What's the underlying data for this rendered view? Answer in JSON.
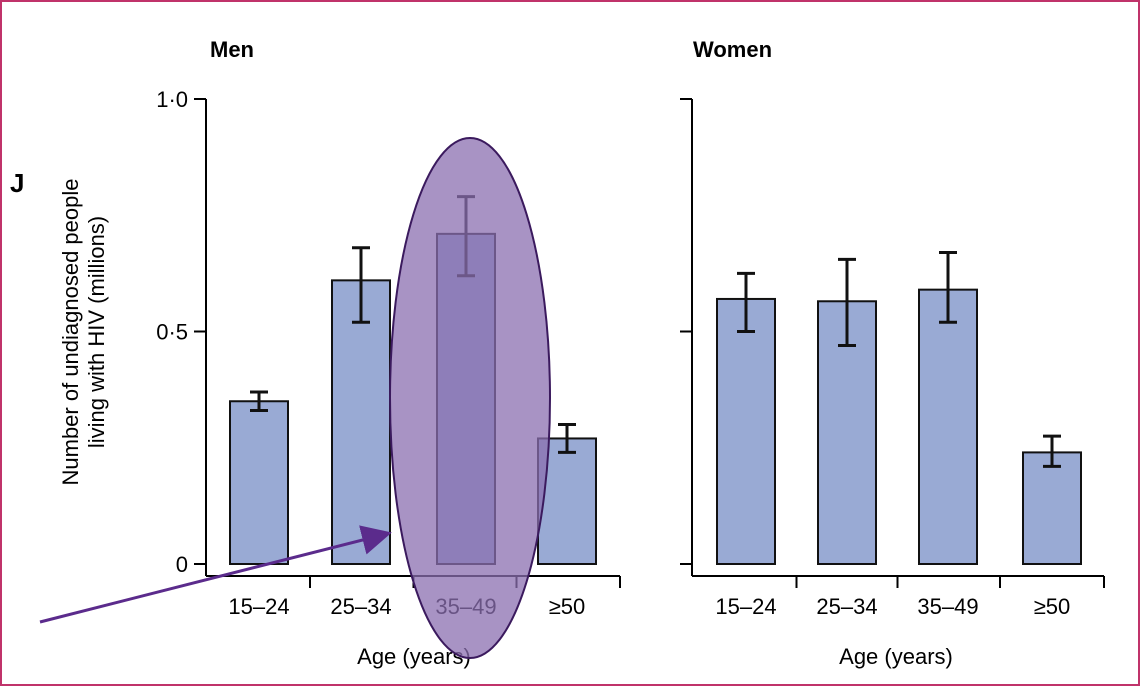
{
  "panel_letter": "J",
  "colors": {
    "frame": "#c0336a",
    "bar": "#99aad4",
    "axis": "#000000",
    "highlight_fill": "#8b6fb0",
    "highlight_stroke": "#3b1a5e",
    "arrow": "#5b2b8c"
  },
  "chart_data": [
    {
      "type": "bar",
      "title": "Men",
      "xlabel": "Age (years)",
      "ylabel_line1": "Number of undiagnosed people",
      "ylabel_line2": "living with HIV (millions)",
      "categories": [
        "15–24",
        "25–34",
        "35–49",
        "≥50"
      ],
      "values": [
        0.35,
        0.61,
        0.71,
        0.27
      ],
      "error_low": [
        0.33,
        0.52,
        0.62,
        0.24
      ],
      "error_high": [
        0.37,
        0.68,
        0.79,
        0.3
      ],
      "ylim": [
        0,
        1.0
      ],
      "yticks": [
        0,
        0.5,
        1.0
      ],
      "ytick_labels": [
        "0",
        "0·5",
        "1·0"
      ],
      "highlighted_category": "35–49"
    },
    {
      "type": "bar",
      "title": "Women",
      "xlabel": "Age (years)",
      "categories": [
        "15–24",
        "25–34",
        "35–49",
        "≥50"
      ],
      "values": [
        0.57,
        0.565,
        0.59,
        0.24
      ],
      "error_low": [
        0.5,
        0.47,
        0.52,
        0.21
      ],
      "error_high": [
        0.625,
        0.655,
        0.67,
        0.275
      ],
      "ylim": [
        0,
        1.0
      ],
      "yticks": [
        0,
        0.5,
        1.0
      ]
    }
  ]
}
